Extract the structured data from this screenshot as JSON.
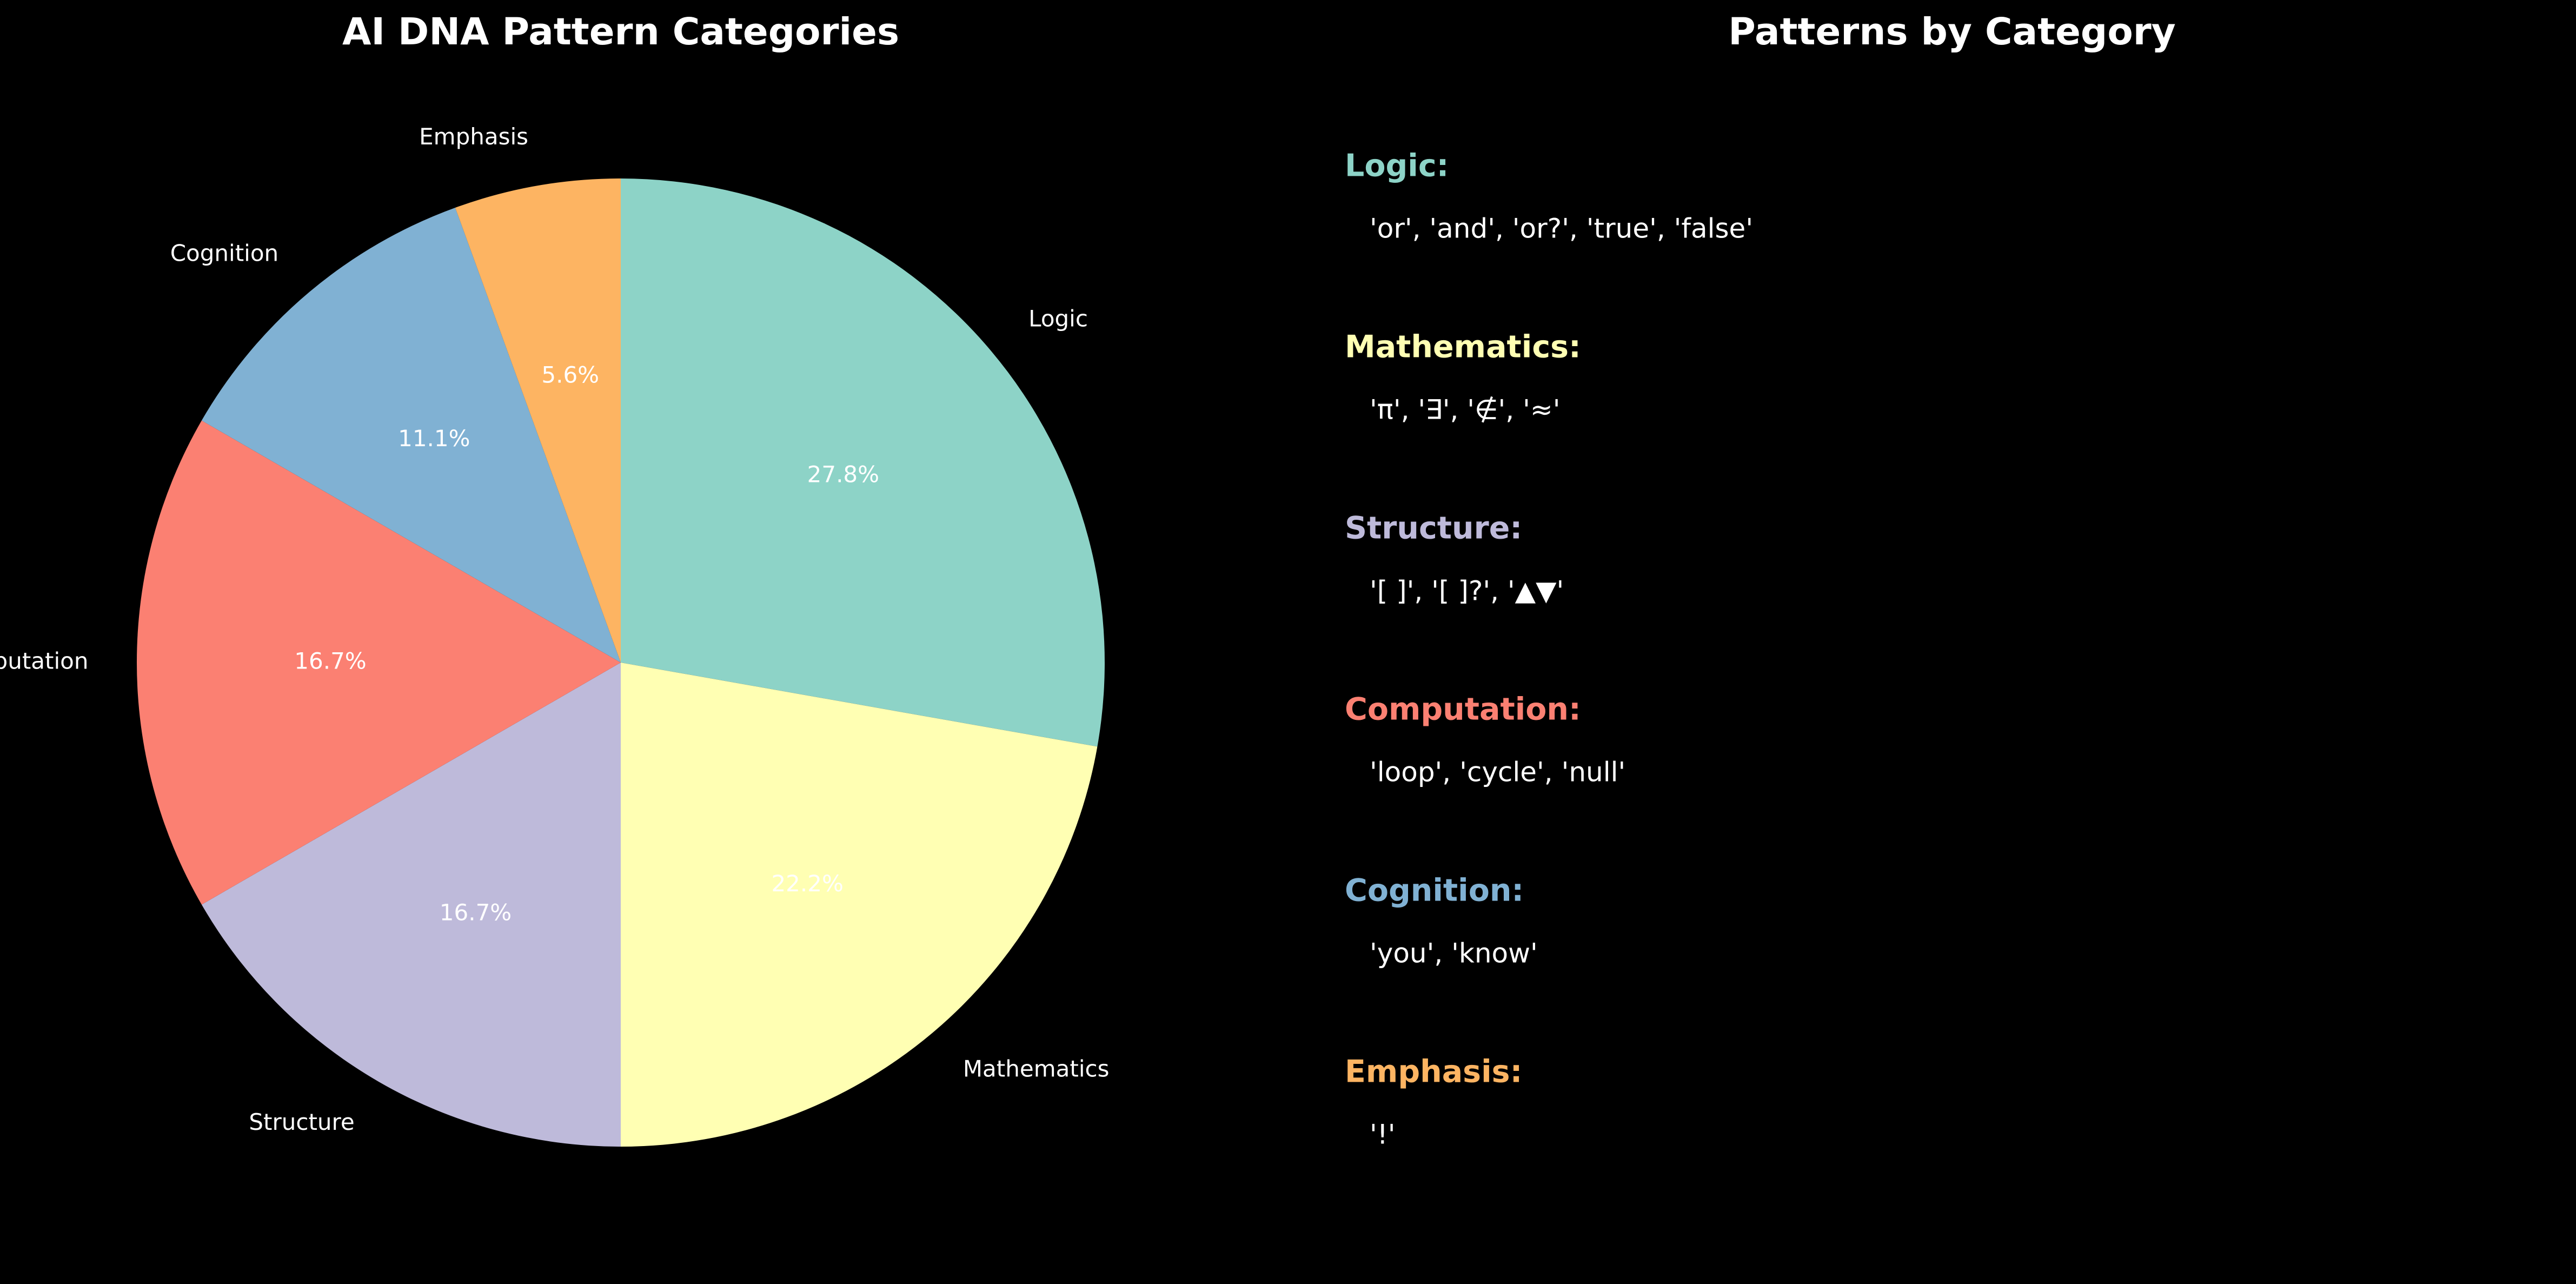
{
  "chart_data": [
    {
      "type": "pie",
      "title": "AI DNA Pattern Categories",
      "start_angle_deg": 90,
      "direction": "clockwise",
      "categories": [
        "Logic",
        "Mathematics",
        "Structure",
        "Computation",
        "Cognition",
        "Emphasis"
      ],
      "values": [
        5,
        4,
        3,
        3,
        2,
        1
      ],
      "percent_labels": [
        "27.8%",
        "22.2%",
        "16.7%",
        "16.7%",
        "11.1%",
        "5.6%"
      ],
      "colors": [
        "#8dd3c7",
        "#ffffb3",
        "#bebada",
        "#fb8072",
        "#80b1d3",
        "#fdb462"
      ]
    },
    {
      "type": "table",
      "title": "Patterns by Category",
      "rows": [
        {
          "name": "Logic:",
          "patterns": "'or', 'and', 'or?', 'true', 'false'",
          "color": "#8dd3c7"
        },
        {
          "name": "Mathematics:",
          "patterns": "'π', '∃', '∉', '≈'",
          "color": "#ffffb3"
        },
        {
          "name": "Structure:",
          "patterns": "'[ ]', '[ ]?', '▲▼'",
          "color": "#bebada"
        },
        {
          "name": "Computation:",
          "patterns": "'loop', 'cycle', 'null'",
          "color": "#fb8072"
        },
        {
          "name": "Cognition:",
          "patterns": "'you', 'know'",
          "color": "#80b1d3"
        },
        {
          "name": "Emphasis:",
          "patterns": "'!'",
          "color": "#fdb462"
        }
      ]
    }
  ]
}
